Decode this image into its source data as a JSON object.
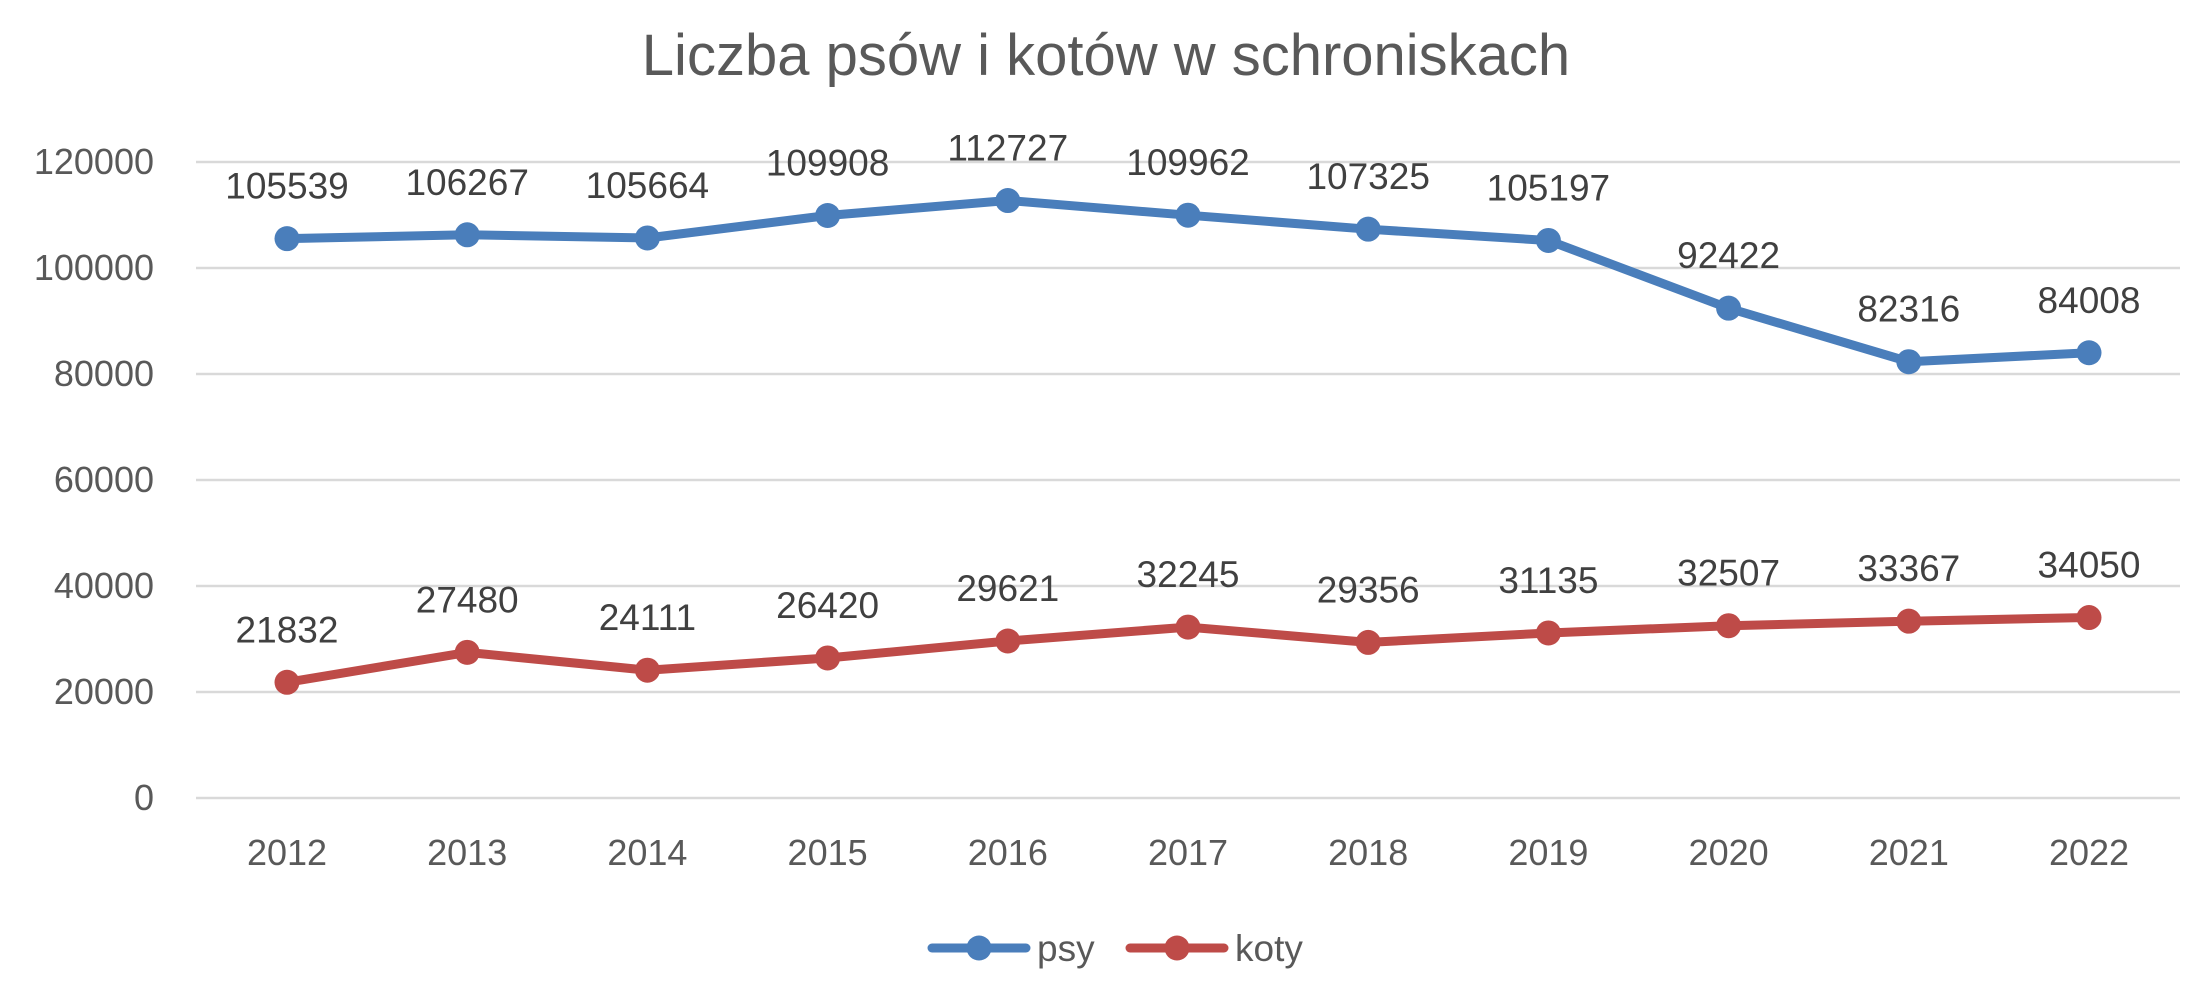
{
  "chart_data": {
    "type": "line",
    "title": "Liczba psów i kotów w schroniskach",
    "xlabel": "",
    "ylabel": "",
    "categories": [
      "2012",
      "2013",
      "2014",
      "2015",
      "2016",
      "2017",
      "2018",
      "2019",
      "2020",
      "2021",
      "2022"
    ],
    "ylim": [
      0,
      120000
    ],
    "yticks": [
      0,
      20000,
      40000,
      60000,
      80000,
      100000,
      120000
    ],
    "grid": true,
    "legend_position": "bottom",
    "series": [
      {
        "name": "psy",
        "color": "#4A7EBB",
        "values": [
          105539,
          106267,
          105664,
          109908,
          112727,
          109962,
          107325,
          105197,
          92422,
          82316,
          84008
        ]
      },
      {
        "name": "koty",
        "color": "#BE4B48",
        "values": [
          21832,
          27480,
          24111,
          26420,
          29621,
          32245,
          29356,
          31135,
          32507,
          33367,
          34050
        ]
      }
    ]
  }
}
